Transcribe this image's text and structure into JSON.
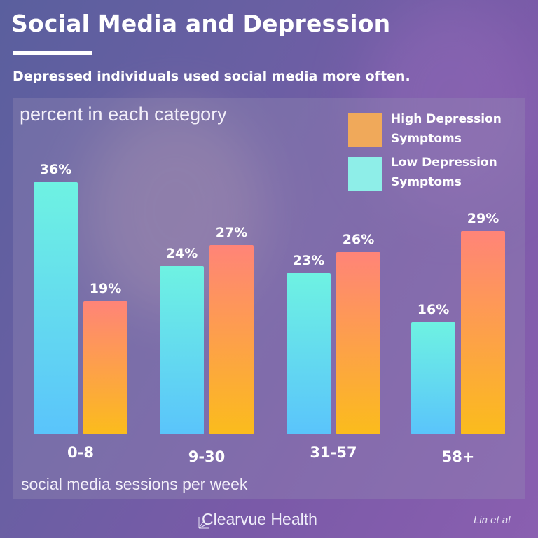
{
  "header": {
    "title": "Social Media and Depression",
    "subtitle": "Depressed individuals used social media more often."
  },
  "footer": {
    "brand": "Clearvue Health",
    "citation": "Lin et al"
  },
  "chart_data": {
    "type": "bar",
    "ylabel": "percent in each category",
    "xlabel": "social media sessions per week",
    "categories": [
      "0-8",
      "9-30",
      "31-57",
      "58+"
    ],
    "ylim": [
      0,
      36
    ],
    "grid": false,
    "legend_placement": "top-right",
    "series": [
      {
        "name": "Low Depression Symptoms",
        "values": [
          36,
          24,
          23,
          16
        ],
        "labels": [
          "36%",
          "24%",
          "23%",
          "16%"
        ],
        "color_top": "#6ef2e2",
        "color_bottom": "#5ac4fb"
      },
      {
        "name": "High Depression Symptoms",
        "values": [
          19,
          27,
          26,
          29
        ],
        "labels": [
          "19%",
          "27%",
          "26%",
          "29%"
        ],
        "color_top": "#ff8478",
        "color_bottom": "#fbbc1c"
      }
    ],
    "legend": [
      {
        "label_line1": "High Depression",
        "label_line2": "Symptoms",
        "color": "#f0a95a"
      },
      {
        "label_line1": "Low Depression",
        "label_line2": "Symptoms",
        "color": "#8eeee8"
      }
    ]
  }
}
